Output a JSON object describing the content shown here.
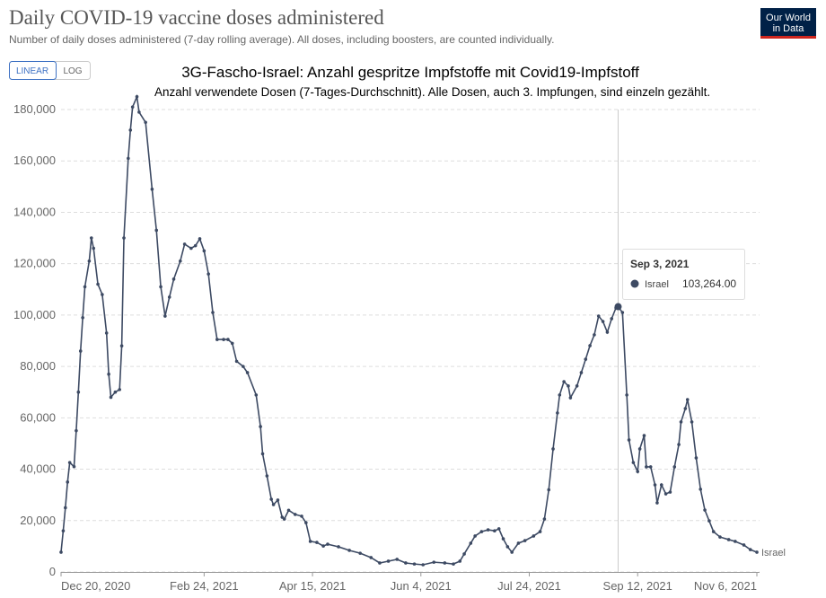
{
  "chart_data": {
    "type": "line",
    "title": "Daily COVID-19 vaccine doses administered",
    "subtitle": "Number of daily doses administered (7-day rolling average). All doses, including boosters, are counted individually.",
    "logo": [
      "Our World",
      "in Data"
    ],
    "scale_buttons": [
      "LINEAR",
      "LOG"
    ],
    "active_scale": "LINEAR",
    "overlay_title": "3G-Fascho-Israel: Anzahl gespritze Impfstoffe mit Covid19-Impfstoff",
    "overlay_subtitle": "Anzahl verwendete Dosen (7-Tages-Durchschnitt). Alle Dosen, auch 3. Impfungen, sind einzeln gezählt.",
    "grid": true,
    "xlim": [
      "2020-12-20",
      "2021-11-06"
    ],
    "xticks": [
      {
        "value": "2020-12-20",
        "label": "Dec 20, 2020"
      },
      {
        "value": "2021-02-24",
        "label": "Feb 24, 2021"
      },
      {
        "value": "2021-04-15",
        "label": "Apr 15, 2021"
      },
      {
        "value": "2021-06-04",
        "label": "Jun 4, 2021"
      },
      {
        "value": "2021-07-24",
        "label": "Jul 24, 2021"
      },
      {
        "value": "2021-09-12",
        "label": "Sep 12, 2021"
      },
      {
        "value": "2021-11-06",
        "label": "Nov 6, 2021"
      }
    ],
    "ylim": [
      0,
      185000
    ],
    "yticks": [
      0,
      {
        "value": 20000,
        "label": "20,000"
      },
      {
        "value": 40000,
        "label": "40,000"
      },
      {
        "value": 60000,
        "label": "60,000"
      },
      {
        "value": 80000,
        "label": "80,000"
      },
      {
        "value": 100000,
        "label": "100,000"
      },
      {
        "value": 120000,
        "label": "120,000"
      },
      {
        "value": 140000,
        "label": "140,000"
      },
      {
        "value": 160000,
        "label": "160,000"
      },
      {
        "value": 180000,
        "label": "180,000"
      }
    ],
    "series": [
      {
        "name": "Israel",
        "color": "#3d4a63",
        "x": [
          "2020-12-20",
          "2020-12-21",
          "2020-12-22",
          "2020-12-23",
          "2020-12-24",
          "2020-12-26",
          "2020-12-27",
          "2020-12-28",
          "2020-12-29",
          "2020-12-30",
          "2020-12-31",
          "2021-01-02",
          "2021-01-03",
          "2021-01-04",
          "2021-01-06",
          "2021-01-08",
          "2021-01-10",
          "2021-01-11",
          "2021-01-12",
          "2021-01-14",
          "2021-01-16",
          "2021-01-17",
          "2021-01-18",
          "2021-01-20",
          "2021-01-21",
          "2021-01-22",
          "2021-01-24",
          "2021-01-25",
          "2021-01-28",
          "2021-01-31",
          "2021-02-02",
          "2021-02-04",
          "2021-02-06",
          "2021-02-08",
          "2021-02-10",
          "2021-02-13",
          "2021-02-15",
          "2021-02-18",
          "2021-02-20",
          "2021-02-22",
          "2021-02-24",
          "2021-02-26",
          "2021-02-28",
          "2021-03-02",
          "2021-03-05",
          "2021-03-07",
          "2021-03-09",
          "2021-03-11",
          "2021-03-14",
          "2021-03-16",
          "2021-03-20",
          "2021-03-22",
          "2021-03-23",
          "2021-03-25",
          "2021-03-27",
          "2021-03-28",
          "2021-03-30",
          "2021-04-01",
          "2021-04-02",
          "2021-04-04",
          "2021-04-07",
          "2021-04-10",
          "2021-04-12",
          "2021-04-14",
          "2021-04-17",
          "2021-04-20",
          "2021-04-22",
          "2021-04-27",
          "2021-05-02",
          "2021-05-07",
          "2021-05-12",
          "2021-05-16",
          "2021-05-20",
          "2021-05-24",
          "2021-05-28",
          "2021-06-01",
          "2021-06-05",
          "2021-06-10",
          "2021-06-15",
          "2021-06-19",
          "2021-06-22",
          "2021-06-24",
          "2021-06-27",
          "2021-06-29",
          "2021-07-02",
          "2021-07-05",
          "2021-07-08",
          "2021-07-10",
          "2021-07-12",
          "2021-07-14",
          "2021-07-16",
          "2021-07-19",
          "2021-07-22",
          "2021-07-26",
          "2021-07-29",
          "2021-07-31",
          "2021-08-02",
          "2021-08-04",
          "2021-08-06",
          "2021-08-07",
          "2021-08-09",
          "2021-08-11",
          "2021-08-12",
          "2021-08-15",
          "2021-08-17",
          "2021-08-19",
          "2021-08-21",
          "2021-08-23",
          "2021-08-25",
          "2021-08-27",
          "2021-08-29",
          "2021-08-31",
          "2021-09-02",
          "2021-09-03",
          "2021-09-05",
          "2021-09-07",
          "2021-09-08",
          "2021-09-10",
          "2021-09-12",
          "2021-09-13",
          "2021-09-15",
          "2021-09-16",
          "2021-09-18",
          "2021-09-20",
          "2021-09-21",
          "2021-09-23",
          "2021-09-25",
          "2021-09-27",
          "2021-09-29",
          "2021-10-01",
          "2021-10-02",
          "2021-10-04",
          "2021-10-05",
          "2021-10-07",
          "2021-10-09",
          "2021-10-11",
          "2021-10-13",
          "2021-10-15",
          "2021-10-17",
          "2021-10-20",
          "2021-10-24",
          "2021-10-27",
          "2021-10-31",
          "2021-11-03",
          "2021-11-06"
        ],
        "values": [
          7700,
          16000,
          25000,
          35000,
          42600,
          41000,
          55000,
          70000,
          86000,
          99000,
          111000,
          121000,
          130000,
          126000,
          112000,
          108000,
          93000,
          77000,
          68000,
          70000,
          71000,
          88000,
          130000,
          161000,
          172000,
          181000,
          185000,
          179000,
          175000,
          149000,
          133000,
          111000,
          99600,
          107000,
          114000,
          121000,
          127600,
          126000,
          127000,
          129700,
          125000,
          116000,
          101000,
          90500,
          90500,
          90500,
          89000,
          82000,
          80000,
          77600,
          68900,
          56600,
          46000,
          37400,
          28300,
          26200,
          28000,
          21300,
          20600,
          24000,
          22400,
          21700,
          19200,
          11900,
          11500,
          10100,
          10800,
          9800,
          8400,
          7300,
          5600,
          3500,
          4200,
          4900,
          3500,
          3100,
          2800,
          3800,
          3500,
          3100,
          4200,
          7000,
          11200,
          14000,
          15700,
          16400,
          16000,
          16800,
          12900,
          9800,
          7700,
          11200,
          12200,
          14000,
          15700,
          20600,
          32000,
          47900,
          61900,
          68900,
          74100,
          72400,
          67800,
          72400,
          77600,
          82800,
          88100,
          92300,
          99600,
          97500,
          93300,
          98600,
          102800,
          103264,
          101000,
          68900,
          51400,
          42600,
          39100,
          47900,
          53100,
          40900,
          40900,
          33900,
          26900,
          33900,
          30400,
          31100,
          40900,
          49600,
          58400,
          63600,
          67100,
          58400,
          44400,
          32200,
          24100,
          19900,
          15700,
          13600,
          12600,
          11900,
          10500,
          8700,
          7700
        ]
      }
    ],
    "tooltip": {
      "x": "2021-09-03",
      "date": "Sep 3, 2021",
      "value": 103264,
      "value_label": "103,264.00"
    }
  }
}
